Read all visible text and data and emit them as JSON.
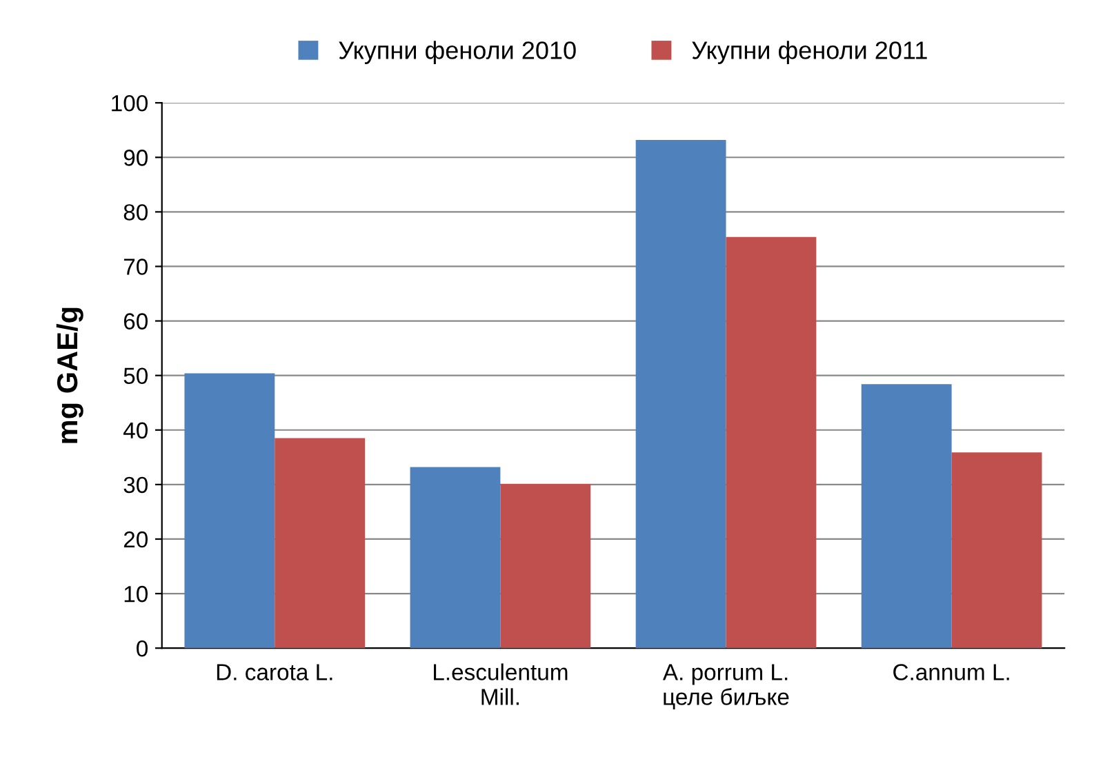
{
  "chart_data": {
    "type": "bar",
    "ylabel": "mg GAE/g",
    "categories": [
      "D. carota L.",
      "L.esculentum\nMill.",
      "A. porrum L.\nцеле биљке",
      "C.annum L."
    ],
    "series": [
      {
        "name": "Укупни феноли 2010",
        "color": "#4f81bd",
        "values": [
          50.4,
          33.2,
          93.2,
          48.4
        ]
      },
      {
        "name": "Укупни феноли 2011",
        "color": "#c0504d",
        "values": [
          38.5,
          30.1,
          75.4,
          35.9
        ]
      }
    ],
    "ylim": [
      0,
      100
    ],
    "yticks": [
      0,
      10,
      20,
      30,
      40,
      50,
      60,
      70,
      80,
      90,
      100
    ],
    "grid": "y",
    "legend": "top"
  }
}
